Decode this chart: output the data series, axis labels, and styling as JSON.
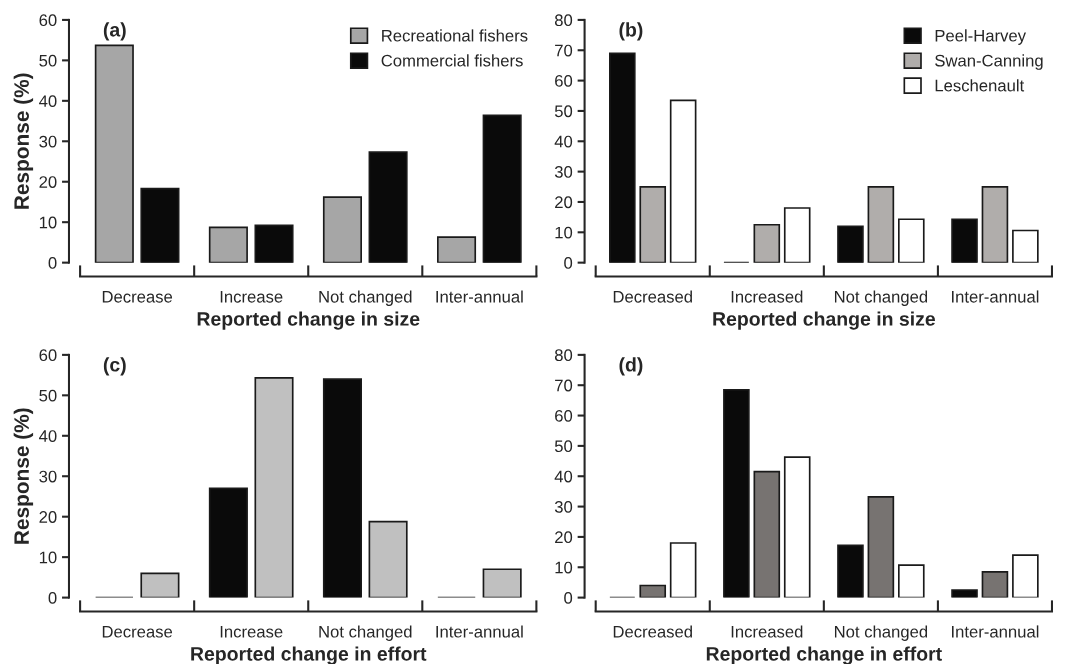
{
  "chart_data": [
    {
      "type": "bar",
      "annotations": [
        "(a)"
      ],
      "xlabel": "Reported change in size",
      "ylabel": "Response (%)",
      "categories": [
        "Decrease",
        "Increase",
        "Not changed",
        "Inter-annual"
      ],
      "ylim": [
        0,
        60
      ],
      "yticks": [
        0,
        10,
        20,
        30,
        40,
        50,
        60
      ],
      "legend": "top right",
      "grid": false,
      "series": [
        {
          "name": "Recreational fishers",
          "color": "#a6a6a6",
          "values": [
            53.7,
            8.7,
            16.2,
            6.3
          ]
        },
        {
          "name": "Commercial fishers",
          "color": "#0a0a0a",
          "values": [
            18.3,
            9.2,
            27.3,
            36.4
          ]
        }
      ]
    },
    {
      "type": "bar",
      "annotations": [
        "(b)"
      ],
      "xlabel": "Reported change in size",
      "categories": [
        "Decreased",
        "Increased",
        "Not changed",
        "Inter-annual"
      ],
      "ylim": [
        0,
        80
      ],
      "yticks": [
        0,
        10,
        20,
        30,
        40,
        50,
        60,
        70,
        80
      ],
      "legend": "top right",
      "grid": false,
      "series": [
        {
          "name": "Peel-Harvey",
          "color": "#0a0a0a",
          "values": [
            69,
            0,
            12,
            14.3
          ]
        },
        {
          "name": "Swan-Canning",
          "color": "#b0adab",
          "values": [
            25,
            12.5,
            25,
            25
          ]
        },
        {
          "name": "Leschenault",
          "color": "#ffffff",
          "values": [
            53.5,
            18,
            14.3,
            10.6
          ]
        }
      ]
    },
    {
      "type": "bar",
      "annotations": [
        "(c)"
      ],
      "xlabel": "Reported change in effort",
      "ylabel": "Response (%)",
      "categories": [
        "Decrease",
        "Increase",
        "Not changed",
        "Inter-annual"
      ],
      "ylim": [
        0,
        60
      ],
      "yticks": [
        0,
        10,
        20,
        30,
        40,
        50,
        60
      ],
      "grid": false,
      "series": [
        {
          "color": "#0a0a0a",
          "values": [
            0,
            27,
            54,
            0
          ]
        },
        {
          "color": "#c0c0c0",
          "values": [
            6,
            54.3,
            18.8,
            7
          ]
        }
      ]
    },
    {
      "type": "bar",
      "annotations": [
        "(d)"
      ],
      "xlabel": "Reported change in effort",
      "categories": [
        "Decreased",
        "Increased",
        "Not changed",
        "Inter-annual"
      ],
      "ylim": [
        0,
        80
      ],
      "yticks": [
        0,
        10,
        20,
        30,
        40,
        50,
        60,
        70,
        80
      ],
      "grid": false,
      "series": [
        {
          "color": "#0a0a0a",
          "values": [
            0,
            68.5,
            17.2,
            2.5
          ]
        },
        {
          "color": "#777371",
          "values": [
            4,
            41.5,
            33.2,
            8.5
          ]
        },
        {
          "color": "#ffffff",
          "values": [
            18,
            46.3,
            10.7,
            14
          ]
        }
      ]
    }
  ]
}
